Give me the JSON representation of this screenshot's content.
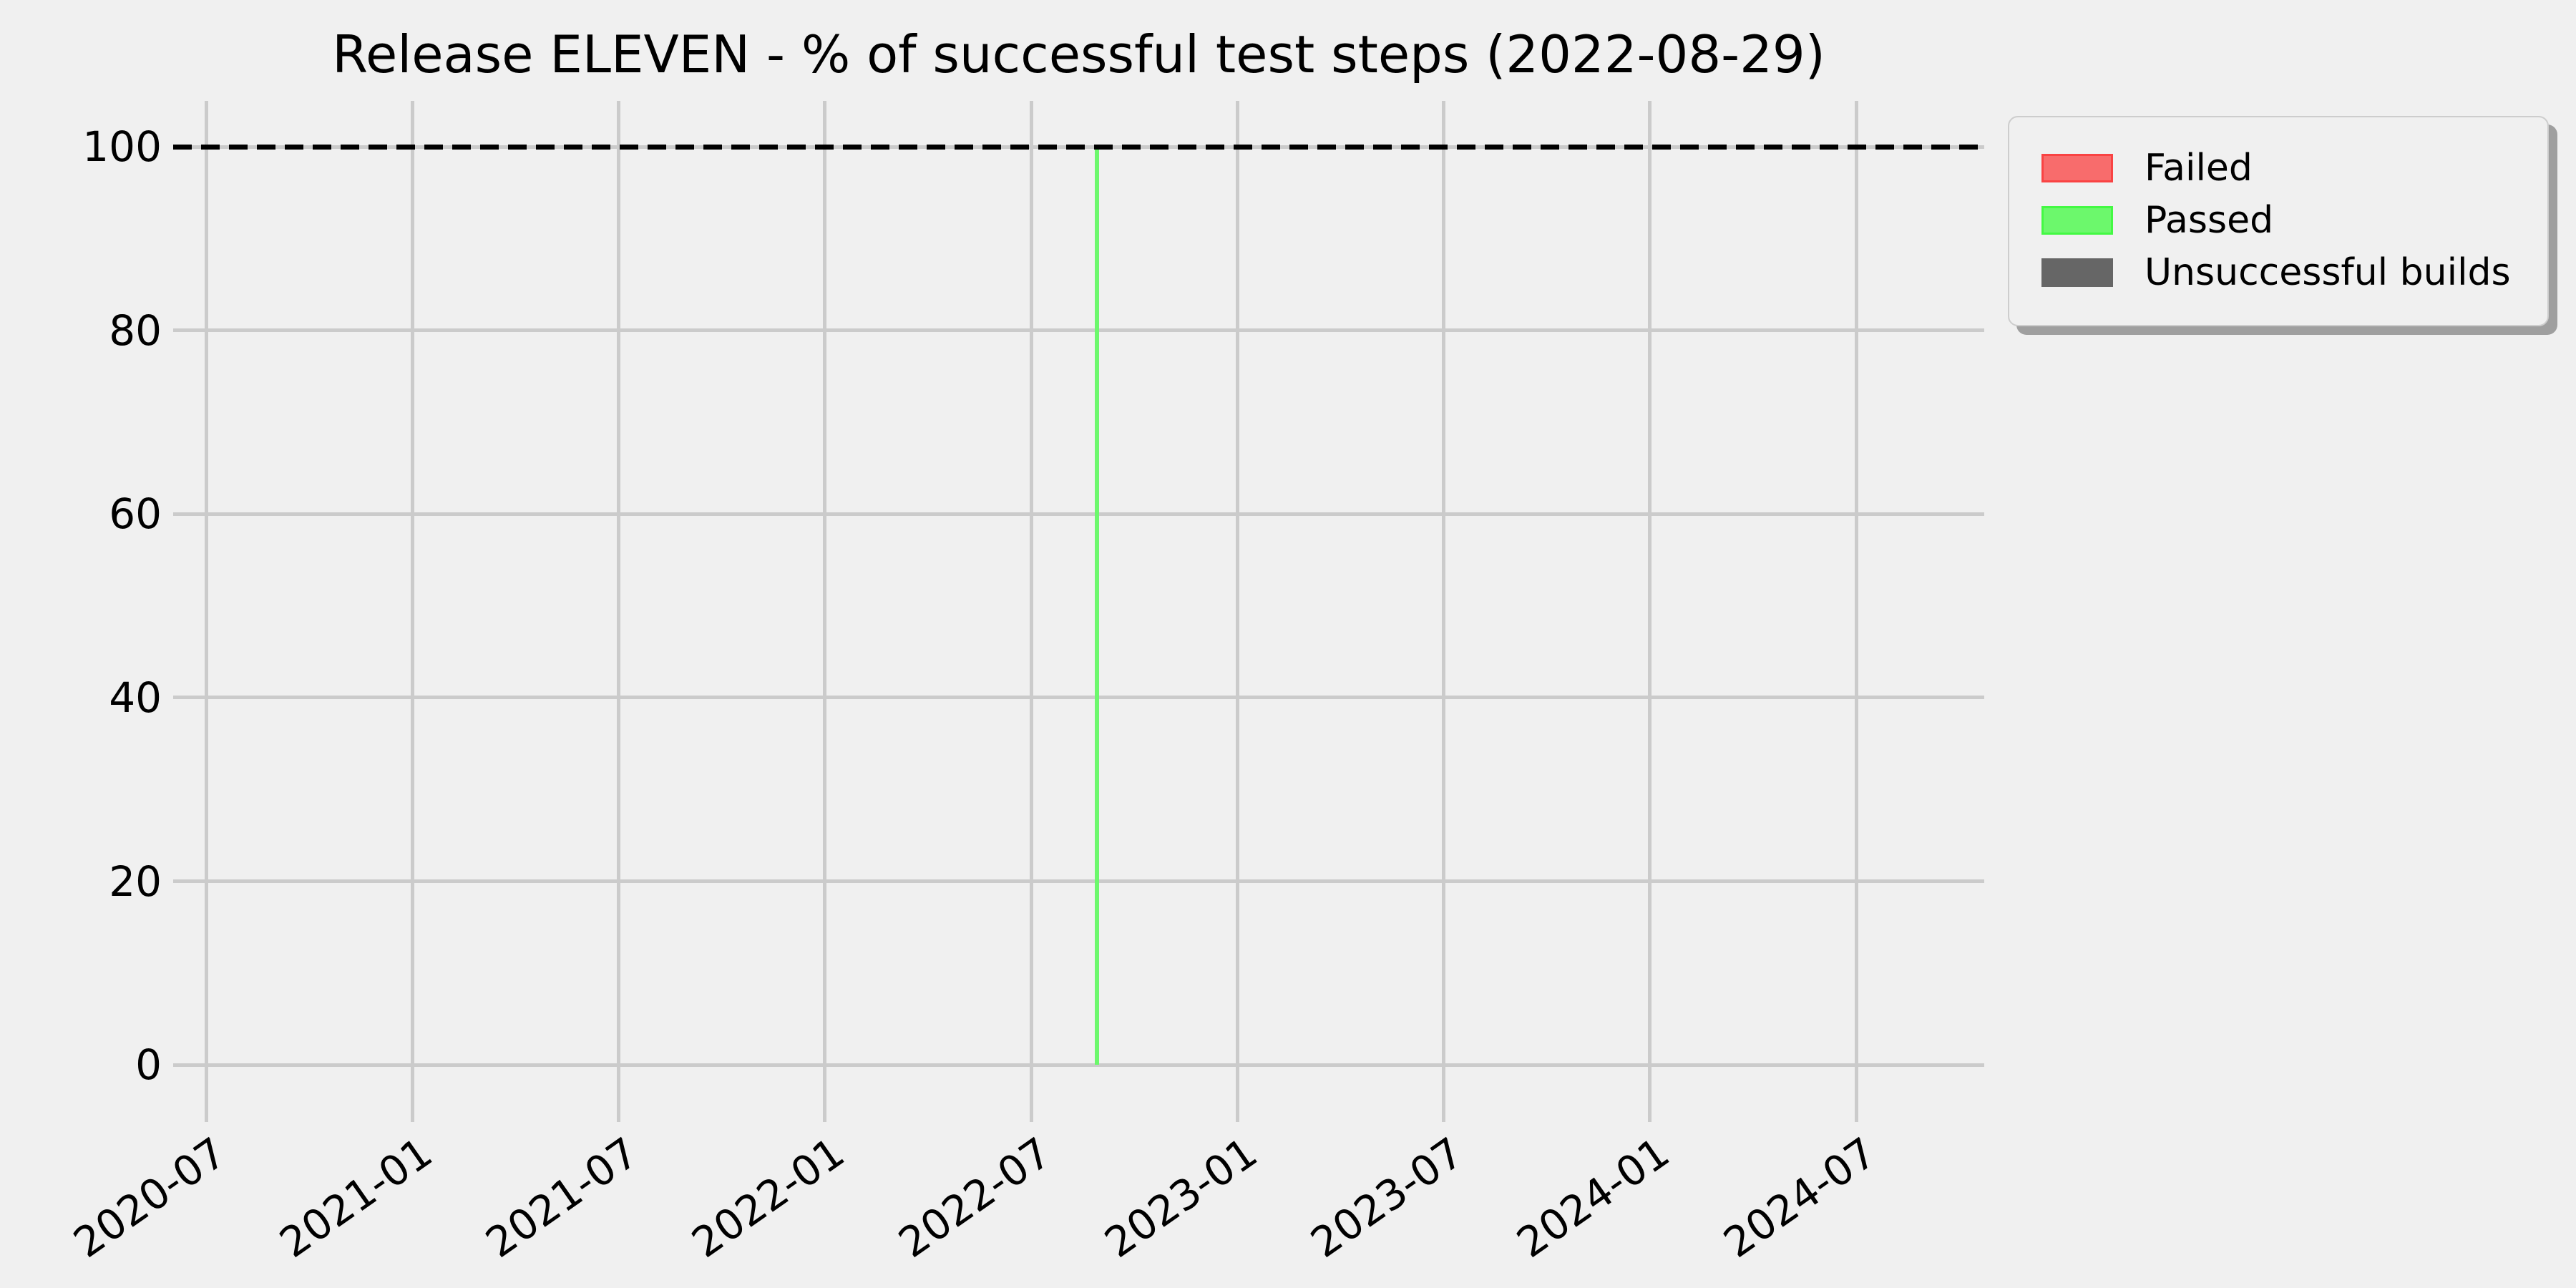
{
  "chart_data": {
    "type": "bar",
    "title": "Release ELEVEN - % of successful test steps (2022-08-29)",
    "report_date": "2022-08-29",
    "x_tick_labels": [
      "2020-07",
      "2021-01",
      "2021-07",
      "2022-01",
      "2022-07",
      "2023-01",
      "2023-07",
      "2024-01",
      "2024-07"
    ],
    "y_ticks": [
      0,
      20,
      40,
      60,
      80,
      100
    ],
    "ylim": [
      -5,
      105
    ],
    "xlabel": "",
    "ylabel": "",
    "grid": true,
    "legend_position": "upper right",
    "series": [
      {
        "name": "Failed",
        "color": "#f86c6c",
        "edge_color": "#f94343",
        "values": []
      },
      {
        "name": "Passed",
        "color": "#6cf86c",
        "edge_color": "#43f943",
        "values": [
          {
            "date": "2022-08-29",
            "percent": 100
          }
        ]
      },
      {
        "name": "Unsuccessful builds",
        "color": "#666666",
        "edge_color": "#666666",
        "values": []
      }
    ],
    "reference_line": {
      "y": 100,
      "style": "dashed",
      "color": "#000000"
    }
  },
  "colors": {
    "background": "#f0f0f0",
    "grid": "#cbcbcb",
    "text": "#000000",
    "legend_border": "#cdcdcd",
    "legend_shadow": "#9f9f9f"
  }
}
